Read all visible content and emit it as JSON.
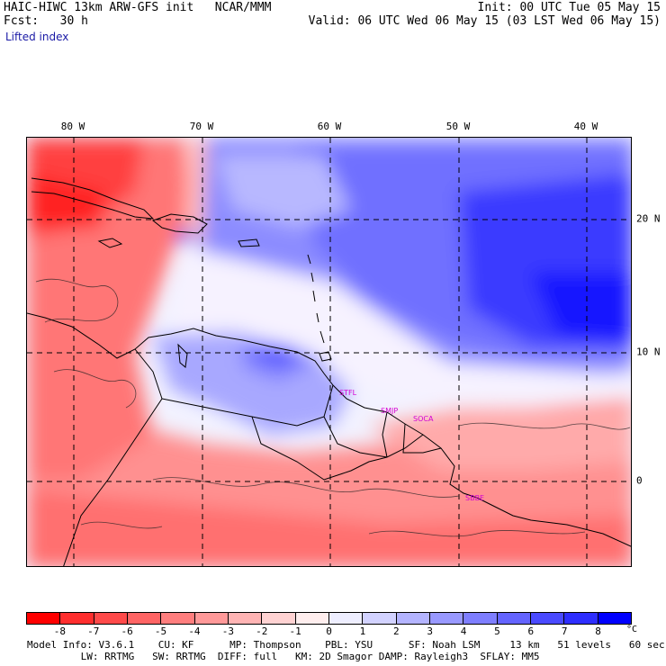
{
  "header": {
    "model_title": "HAIC-HIWC 13km ARW-GFS init   NCAR/MMM",
    "fcst_label": "Fcst:   30 h",
    "init_label": "Init: 00 UTC Tue 05 May 15",
    "valid_label": "Valid: 06 UTC Wed 06 May 15 (03 LST Wed 06 May 15)",
    "field_name": "Lifted index"
  },
  "map": {
    "lon_labels": [
      "80 W",
      "70 W",
      "60 W",
      "50 W",
      "40 W"
    ],
    "lat_labels": [
      "20 N",
      "10 N",
      "0"
    ],
    "stations": [
      "STFL",
      "SMJP",
      "SOCA",
      "SBBE"
    ]
  },
  "colorbar": {
    "ticks": [
      "-8",
      "-7",
      "-6",
      "-5",
      "-4",
      "-3",
      "-2",
      "-1",
      "0",
      "1",
      "2",
      "3",
      "4",
      "5",
      "6",
      "7",
      "8"
    ],
    "unit": "°C",
    "colors": [
      "#ff0000",
      "#ff2e2e",
      "#ff4a4a",
      "#ff6464",
      "#ff7e7e",
      "#ff9999",
      "#ffb4b4",
      "#ffd2d2",
      "#ffeeee",
      "#eeeeff",
      "#d2d2ff",
      "#b4b4ff",
      "#9999ff",
      "#7e7eff",
      "#6464ff",
      "#4a4aff",
      "#2e2eff",
      "#0000ff"
    ]
  },
  "model_info": {
    "line1": "Model Info: V3.6.1    CU: KF      MP: Thompson    PBL: YSU      SF: Noah LSM     13 km   51 levels   60 sec",
    "line2": "         LW: RRTMG   SW: RRTMG  DIFF: full   KM: 2D Smagor DAMP: Rayleigh3  SFLAY: MM5"
  }
}
